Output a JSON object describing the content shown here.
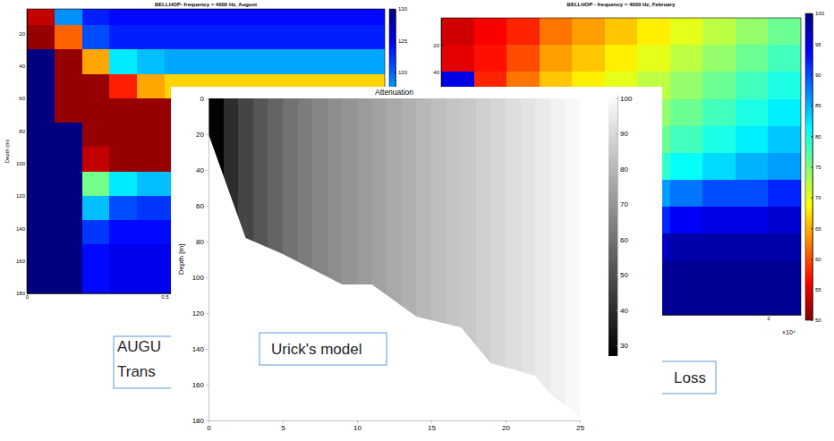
{
  "chart_data": [
    {
      "type": "heatmap",
      "title": "BELLHOP- frequency = 4000 Hz, August",
      "y_label": "Depth (m)",
      "xlim": [
        0,
        1.3
      ],
      "ylim": [
        5,
        180
      ],
      "xticks": [
        0,
        0.5
      ],
      "yticks": [
        20,
        40,
        60,
        80,
        100,
        120,
        140,
        160,
        180
      ],
      "x_edges": [
        0,
        0.1,
        0.2,
        0.3,
        0.4,
        0.5,
        0.6,
        0.7,
        0.8,
        0.9,
        1.0,
        1.1,
        1.2,
        1.3
      ],
      "y_edges": [
        0,
        15,
        30,
        45,
        60,
        75,
        90,
        105,
        120,
        135,
        150,
        165,
        180
      ],
      "cells": [
        [
          88,
          118,
          123,
          124,
          124,
          124,
          124,
          124,
          124,
          124,
          124,
          124,
          124
        ],
        [
          86,
          95,
          121,
          123,
          123,
          123,
          123,
          123,
          123,
          123,
          123,
          123,
          123
        ],
        [
          130,
          86,
          98,
          114,
          116,
          117,
          117,
          117,
          117,
          117,
          117,
          117,
          117
        ],
        [
          130,
          86,
          86,
          92,
          98,
          100,
          100,
          100,
          100,
          100,
          100,
          100,
          100
        ],
        [
          130,
          86,
          86,
          86,
          86,
          86,
          86,
          86,
          86,
          86,
          86,
          86,
          86
        ],
        [
          130,
          130,
          86,
          86,
          86,
          86,
          86,
          86,
          86,
          86,
          86,
          86,
          86
        ],
        [
          130,
          130,
          88,
          86,
          86,
          86,
          86,
          86,
          86,
          86,
          86,
          86,
          86
        ],
        [
          130,
          130,
          108,
          114,
          116,
          116,
          116,
          116,
          116,
          116,
          116,
          116,
          116
        ],
        [
          130,
          130,
          116,
          121,
          122,
          122,
          122,
          122,
          122,
          122,
          122,
          122,
          122
        ],
        [
          130,
          130,
          122,
          124,
          124,
          124,
          124,
          124,
          124,
          124,
          124,
          124,
          124
        ],
        [
          130,
          130,
          124,
          125,
          125,
          125,
          125,
          125,
          125,
          125,
          125,
          125,
          125
        ],
        [
          130,
          130,
          124,
          125,
          125,
          125,
          125,
          125,
          125,
          125,
          125,
          125,
          125
        ]
      ],
      "colorbar": {
        "lim": [
          85,
          130
        ],
        "ticks": [
          130,
          125,
          120
        ]
      }
    },
    {
      "type": "heatmap",
      "title": "BELLHOP - frequency = 4000 Hz, February",
      "xlim": [
        0,
        2.2
      ],
      "ylim": [
        0,
        220
      ],
      "xticks": [
        2
      ],
      "yticks": [
        20,
        40
      ],
      "x_exponent_label": "×10⁴",
      "x_edges": [
        0,
        0.2,
        0.4,
        0.6,
        0.8,
        1.0,
        1.2,
        1.4,
        1.6,
        1.8,
        2.0,
        2.2
      ],
      "y_edges": [
        0,
        20,
        40,
        60,
        80,
        100,
        120,
        140,
        160,
        180,
        200,
        220
      ],
      "cells": [
        [
          54,
          56,
          58,
          62,
          64,
          66,
          68,
          70,
          72,
          74,
          76
        ],
        [
          55,
          57,
          60,
          64,
          66,
          68,
          70,
          72,
          74,
          76,
          78
        ],
        [
          95,
          58,
          62,
          66,
          68,
          70,
          72,
          74,
          76,
          78,
          80
        ],
        [
          95,
          60,
          64,
          68,
          70,
          72,
          74,
          76,
          78,
          80,
          82
        ],
        [
          95,
          95,
          66,
          70,
          72,
          74,
          76,
          78,
          80,
          82,
          84
        ],
        [
          95,
          95,
          68,
          72,
          74,
          77,
          79,
          81,
          83,
          85,
          86
        ],
        [
          95,
          95,
          72,
          76,
          78,
          82,
          86,
          88,
          90,
          90,
          92
        ],
        [
          95,
          95,
          95,
          82,
          86,
          90,
          92,
          94,
          95,
          95,
          96
        ],
        [
          95,
          95,
          95,
          90,
          94,
          96,
          97,
          98,
          98,
          98,
          98
        ],
        [
          96,
          96,
          96,
          95,
          97,
          98,
          99,
          99,
          99,
          99,
          99
        ],
        [
          97,
          97,
          97,
          97,
          98,
          99,
          99,
          99,
          99,
          99,
          99
        ]
      ],
      "colorbar": {
        "lim": [
          50,
          100
        ],
        "ticks": [
          100,
          95,
          90,
          85,
          80,
          75,
          70,
          65,
          60,
          55,
          50
        ]
      }
    },
    {
      "type": "heatmap",
      "title": "Attenuation",
      "y_label": "Depth [m]",
      "xlim": [
        0,
        25
      ],
      "ylim": [
        0,
        180
      ],
      "xticks": [
        0,
        5,
        10,
        15,
        20,
        25
      ],
      "yticks": [
        0,
        20,
        40,
        60,
        80,
        100,
        120,
        140,
        160,
        180
      ],
      "x_edges": [
        0,
        1,
        2,
        3,
        4,
        5,
        6,
        7,
        8,
        9,
        10,
        11,
        12,
        13,
        14,
        15,
        16,
        17,
        18,
        19,
        20,
        21,
        22,
        23,
        24,
        25
      ],
      "y_edges": [
        0,
        180
      ],
      "cells": [
        [
          28,
          40,
          47,
          52,
          56,
          60,
          63,
          66,
          68,
          70,
          72,
          74,
          76,
          78,
          80,
          82,
          84,
          85,
          87,
          89,
          91,
          93,
          95,
          97,
          99
        ]
      ],
      "bathymetry": {
        "x": [
          0,
          2.5,
          5,
          9,
          11,
          14,
          17,
          19,
          22,
          23,
          25
        ],
        "depth": [
          20,
          78,
          87,
          104,
          104,
          122,
          128,
          148,
          155,
          165,
          178
        ]
      },
      "colorbar": {
        "lim": [
          27,
          101
        ],
        "ticks": [
          100,
          90,
          80,
          70,
          60,
          50,
          40,
          30
        ]
      }
    }
  ],
  "text_boxes": [
    [
      "AUGU",
      "Trans"
    ],
    [
      "Urick's model"
    ],
    [
      "Loss"
    ]
  ]
}
